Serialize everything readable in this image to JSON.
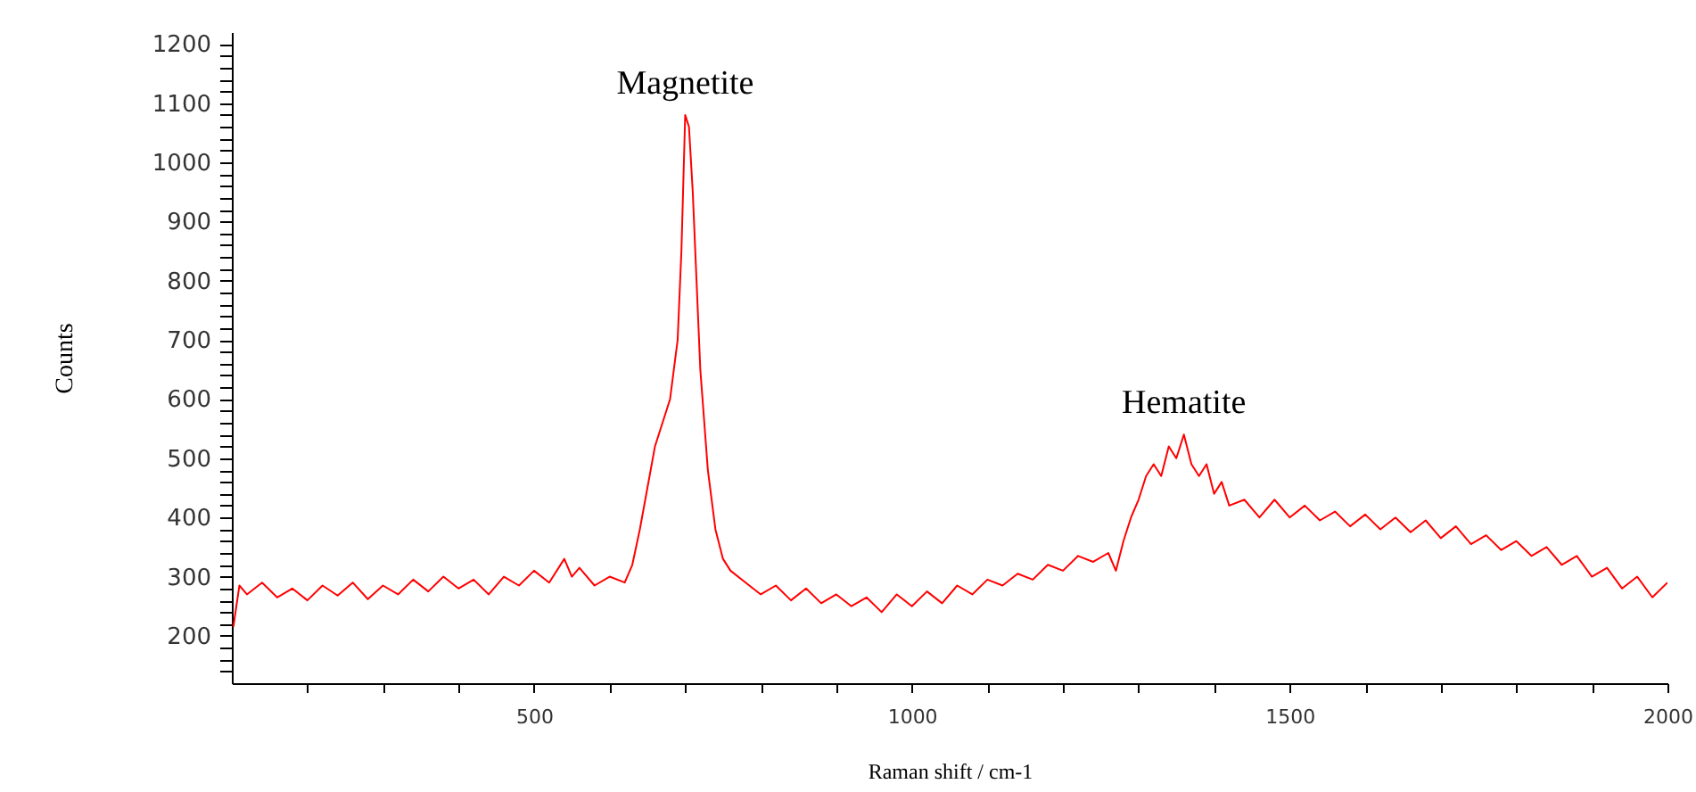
{
  "chart_data": {
    "type": "line",
    "xlabel": "Raman shift / cm-1",
    "ylabel": "Counts",
    "xlim": [
      100,
      2000
    ],
    "ylim": [
      120,
      1220
    ],
    "xticks": [
      {
        "value": 200,
        "label": null
      },
      {
        "value": 300,
        "label": null
      },
      {
        "value": 400,
        "label": null
      },
      500,
      {
        "value": 600,
        "label": null
      },
      {
        "value": 700,
        "label": null
      },
      {
        "value": 800,
        "label": null
      },
      {
        "value": 900,
        "label": null
      },
      1000,
      {
        "value": 1100,
        "label": null
      },
      {
        "value": 1200,
        "label": null
      },
      {
        "value": 1300,
        "label": null
      },
      {
        "value": 1400,
        "label": null
      },
      1500,
      {
        "value": 1600,
        "label": null
      },
      {
        "value": 1700,
        "label": null
      },
      {
        "value": 1800,
        "label": null
      },
      {
        "value": 1900,
        "label": null
      },
      2000
    ],
    "yticks": [
      {
        "value": 140,
        "label": null
      },
      {
        "value": 160,
        "label": null
      },
      {
        "value": 180,
        "label": null
      },
      200,
      {
        "value": 220,
        "label": null
      },
      {
        "value": 240,
        "label": null
      },
      {
        "value": 260,
        "label": null
      },
      {
        "value": 280,
        "label": null
      },
      300,
      {
        "value": 320,
        "label": null
      },
      {
        "value": 340,
        "label": null
      },
      {
        "value": 360,
        "label": null
      },
      {
        "value": 380,
        "label": null
      },
      400,
      {
        "value": 420,
        "label": null
      },
      {
        "value": 440,
        "label": null
      },
      {
        "value": 460,
        "label": null
      },
      {
        "value": 480,
        "label": null
      },
      500,
      {
        "value": 520,
        "label": null
      },
      {
        "value": 540,
        "label": null
      },
      {
        "value": 560,
        "label": null
      },
      {
        "value": 580,
        "label": null
      },
      600,
      {
        "value": 620,
        "label": null
      },
      {
        "value": 640,
        "label": null
      },
      {
        "value": 660,
        "label": null
      },
      {
        "value": 680,
        "label": null
      },
      700,
      {
        "value": 720,
        "label": null
      },
      {
        "value": 740,
        "label": null
      },
      {
        "value": 760,
        "label": null
      },
      {
        "value": 780,
        "label": null
      },
      800,
      {
        "value": 820,
        "label": null
      },
      {
        "value": 840,
        "label": null
      },
      {
        "value": 860,
        "label": null
      },
      {
        "value": 880,
        "label": null
      },
      900,
      {
        "value": 920,
        "label": null
      },
      {
        "value": 940,
        "label": null
      },
      {
        "value": 960,
        "label": null
      },
      {
        "value": 980,
        "label": null
      },
      1000,
      {
        "value": 1020,
        "label": null
      },
      {
        "value": 1040,
        "label": null
      },
      {
        "value": 1060,
        "label": null
      },
      {
        "value": 1080,
        "label": null
      },
      1100,
      {
        "value": 1120,
        "label": null
      },
      {
        "value": 1140,
        "label": null
      },
      {
        "value": 1160,
        "label": null
      },
      {
        "value": 1180,
        "label": null
      },
      1200
    ],
    "grid": false,
    "marker": "none",
    "line_style": "solid",
    "annotations": [
      {
        "text": "Magnetite",
        "x": 700,
        "y": 1080
      },
      {
        "text": "Hematite",
        "x": 1360,
        "y": 540
      }
    ],
    "series": [
      {
        "color": "#ff0000",
        "x": [
          102,
          110,
          120,
          140,
          160,
          180,
          200,
          220,
          240,
          260,
          280,
          300,
          320,
          340,
          360,
          380,
          400,
          420,
          440,
          460,
          480,
          500,
          520,
          540,
          550,
          560,
          580,
          600,
          620,
          630,
          640,
          650,
          660,
          670,
          680,
          690,
          695,
          700,
          705,
          710,
          715,
          720,
          730,
          740,
          750,
          760,
          780,
          800,
          820,
          840,
          860,
          880,
          900,
          920,
          940,
          960,
          980,
          1000,
          1020,
          1040,
          1060,
          1080,
          1100,
          1120,
          1140,
          1160,
          1180,
          1200,
          1220,
          1240,
          1260,
          1270,
          1280,
          1290,
          1300,
          1310,
          1320,
          1330,
          1340,
          1350,
          1360,
          1370,
          1380,
          1390,
          1400,
          1410,
          1420,
          1440,
          1460,
          1480,
          1500,
          1520,
          1540,
          1560,
          1580,
          1600,
          1620,
          1640,
          1660,
          1680,
          1700,
          1720,
          1740,
          1760,
          1780,
          1800,
          1820,
          1840,
          1860,
          1880,
          1900,
          1920,
          1940,
          1960,
          1980,
          2000
        ],
        "values": [
          215,
          285,
          270,
          290,
          265,
          280,
          260,
          285,
          268,
          290,
          262,
          285,
          270,
          295,
          275,
          300,
          280,
          295,
          270,
          300,
          285,
          310,
          290,
          330,
          300,
          315,
          285,
          300,
          290,
          320,
          380,
          450,
          520,
          560,
          600,
          700,
          850,
          1080,
          1060,
          950,
          800,
          650,
          480,
          380,
          330,
          310,
          290,
          270,
          285,
          260,
          280,
          255,
          270,
          250,
          265,
          240,
          270,
          250,
          275,
          255,
          285,
          270,
          295,
          285,
          305,
          295,
          320,
          310,
          335,
          325,
          340,
          310,
          360,
          400,
          430,
          470,
          490,
          470,
          520,
          500,
          540,
          490,
          470,
          490,
          440,
          460,
          420,
          430,
          400,
          430,
          400,
          420,
          395,
          410,
          385,
          405,
          380,
          400,
          375,
          395,
          365,
          385,
          355,
          370,
          345,
          360,
          335,
          350,
          320,
          335,
          300,
          315,
          280,
          300,
          265,
          290
        ]
      }
    ]
  }
}
